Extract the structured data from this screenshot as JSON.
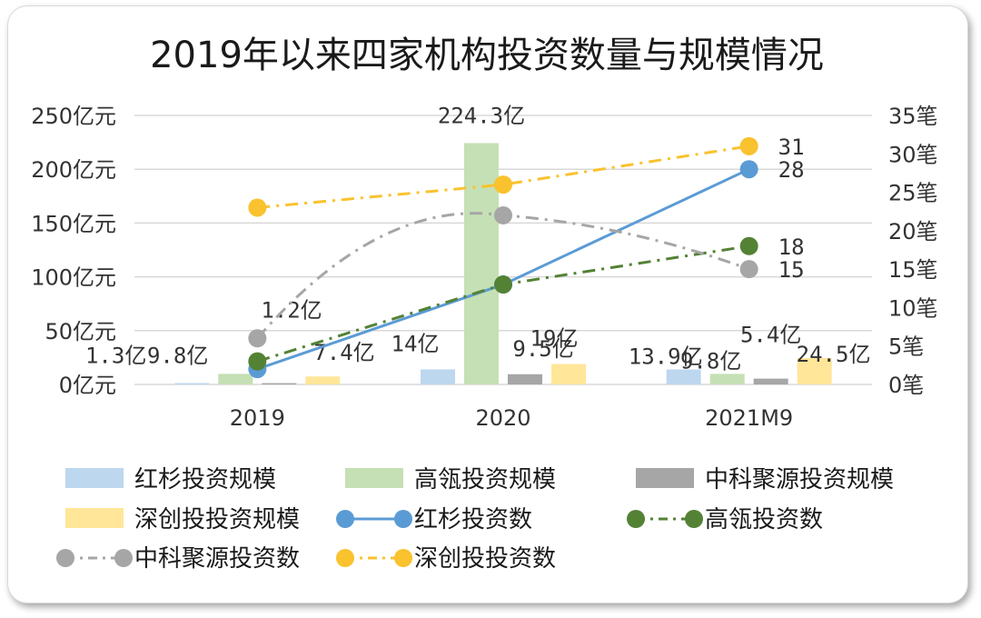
{
  "chart_data": {
    "type": "bar",
    "title": "2019年以来四家机构投资数量与规模情况",
    "categories": [
      "2019",
      "2020",
      "2021M9"
    ],
    "y_left": {
      "unit": "亿元",
      "ylim": [
        0,
        250
      ],
      "ticks": [
        "0亿元",
        "50亿元",
        "100亿元",
        "150亿元",
        "200亿元",
        "250亿元"
      ]
    },
    "y_right": {
      "unit": "笔",
      "ylim": [
        0,
        35
      ],
      "ticks": [
        "0笔",
        "5笔",
        "10笔",
        "15笔",
        "20笔",
        "25笔",
        "30笔",
        "35笔"
      ]
    },
    "grid": true,
    "legend_position": "bottom",
    "bar_series": [
      {
        "name": "红杉投资规模",
        "color": "#bdd7ee",
        "values": [
          1.3,
          14,
          13.9
        ],
        "labels": [
          "1.3亿",
          "14亿",
          "13.9亿"
        ]
      },
      {
        "name": "高瓴投资规模",
        "color": "#c5e0b4",
        "values": [
          9.8,
          224.3,
          9.8
        ],
        "labels": [
          "9.8亿",
          "224.3亿",
          "9.8亿"
        ]
      },
      {
        "name": "中科聚源投资规模",
        "color": "#a6a6a6",
        "values": [
          1.2,
          9.5,
          5.4
        ],
        "labels": [
          "1.2亿",
          "9.5亿",
          "5.4亿"
        ]
      },
      {
        "name": "深创投投资规模",
        "color": "#ffe699",
        "values": [
          7.4,
          19,
          24.5
        ],
        "labels": [
          "7.4亿",
          "19亿",
          "24.5亿"
        ]
      }
    ],
    "line_series": [
      {
        "name": "红杉投资数",
        "color": "#5b9bd5",
        "style": "solid",
        "smooth": false,
        "values": [
          2,
          13,
          28
        ],
        "labels": [
          "",
          "",
          "28"
        ]
      },
      {
        "name": "高瓴投资数",
        "color": "#548235",
        "style": "dashdot",
        "smooth": false,
        "values": [
          3,
          13,
          18
        ],
        "labels": [
          "",
          "",
          "18"
        ]
      },
      {
        "name": "中科聚源投资数",
        "color": "#a6a6a6",
        "style": "dashdot",
        "smooth": true,
        "values": [
          6,
          22,
          15
        ],
        "labels": [
          "",
          "",
          "15"
        ]
      },
      {
        "name": "深创投投资数",
        "color": "#f9c22e",
        "style": "dashdot",
        "smooth": false,
        "values": [
          23,
          26,
          31
        ],
        "labels": [
          "",
          "",
          "31"
        ]
      }
    ]
  }
}
